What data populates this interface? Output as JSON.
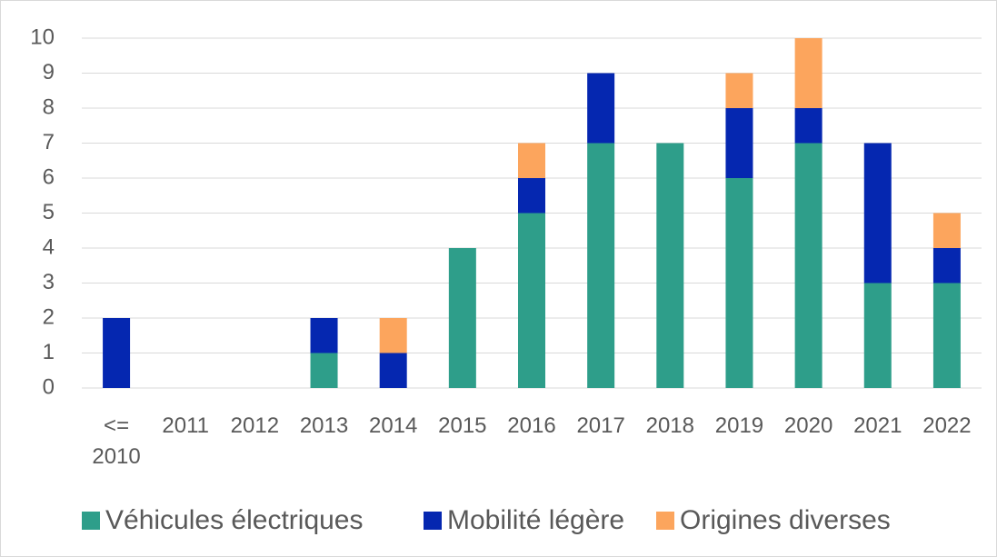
{
  "chart_data": {
    "type": "stacked_bar",
    "categories": [
      "<= 2010",
      "2011",
      "2012",
      "2013",
      "2014",
      "2015",
      "2016",
      "2017",
      "2018",
      "2019",
      "2020",
      "2021",
      "2022"
    ],
    "series": [
      {
        "name": "Véhicules électriques",
        "color": "#2e9e8a",
        "values": [
          0,
          0,
          0,
          1,
          0,
          4,
          5,
          7,
          7,
          6,
          7,
          3,
          3
        ]
      },
      {
        "name": "Mobilité légère",
        "color": "#0527b0",
        "values": [
          2,
          0,
          0,
          1,
          1,
          0,
          1,
          2,
          0,
          2,
          1,
          4,
          1
        ]
      },
      {
        "name": "Origines diverses",
        "color": "#fca55d",
        "values": [
          0,
          0,
          0,
          0,
          1,
          0,
          1,
          0,
          0,
          1,
          2,
          0,
          1
        ]
      }
    ],
    "ylim": [
      0,
      10
    ],
    "yticks": [
      0,
      1,
      2,
      3,
      4,
      5,
      6,
      7,
      8,
      9,
      10
    ],
    "grid": true,
    "legend": "bottom"
  }
}
